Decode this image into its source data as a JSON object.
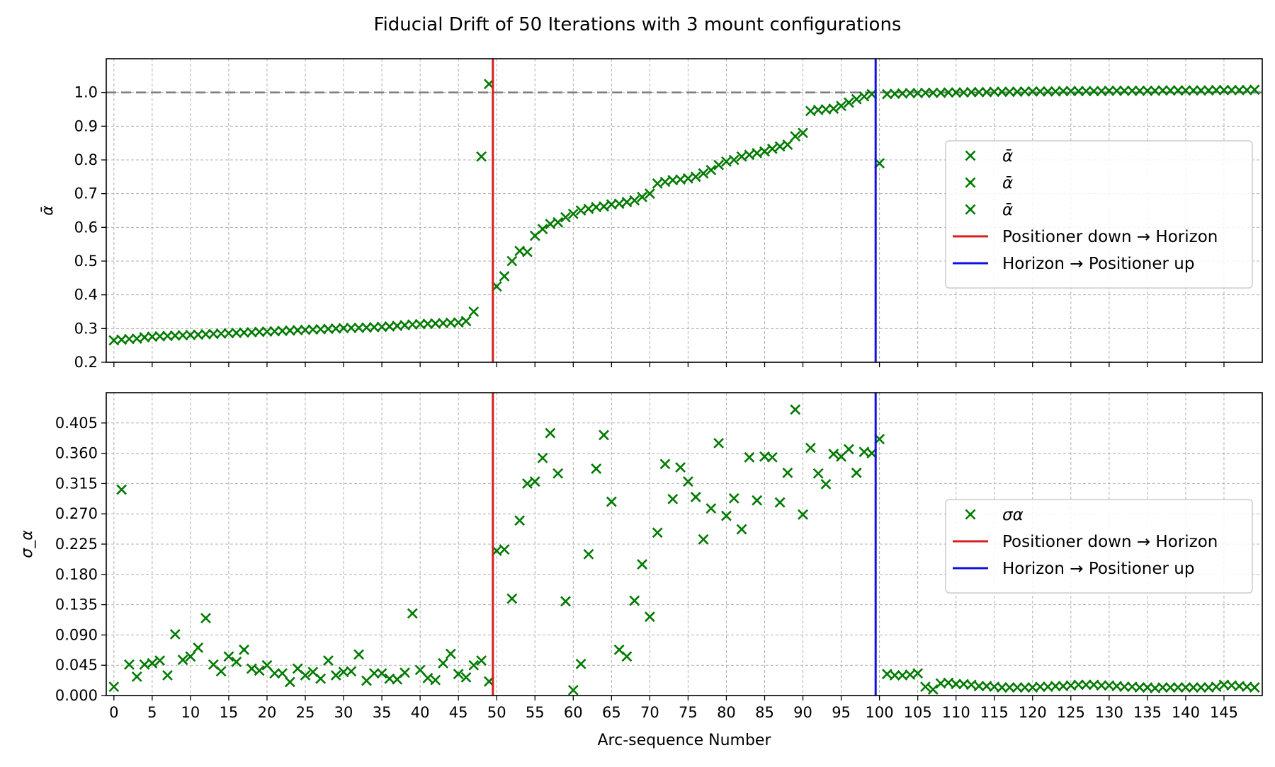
{
  "title": "Fiducial Drift of 50 Iterations with 3 mount configurations",
  "colors": {
    "marker": "#007a00",
    "red_line": "#d62020",
    "blue_line": "#1010e0",
    "reference": "#808080",
    "grid": "#b0b0b0"
  },
  "chart_data": [
    {
      "type": "scatter",
      "ylabel": "ᾱ",
      "xlim": [
        -1,
        150
      ],
      "ylim": [
        0.2,
        1.1
      ],
      "y_ticks": [
        "0.2",
        "0.3",
        "0.4",
        "0.5",
        "0.6",
        "0.7",
        "0.8",
        "0.9",
        "1.0"
      ],
      "x_ticks": [
        "0",
        "5",
        "10",
        "15",
        "20",
        "25",
        "30",
        "35",
        "40",
        "45",
        "50",
        "55",
        "60",
        "65",
        "70",
        "75",
        "80",
        "85",
        "90",
        "95",
        "100",
        "105",
        "110",
        "115",
        "120",
        "125",
        "130",
        "135",
        "140",
        "145"
      ],
      "x_tick_labels_shown": false,
      "reference_line": {
        "y": 1.0,
        "style": "dashed"
      },
      "vlines": [
        {
          "x": 49.5,
          "name": "Positioner down → Horizon",
          "color": "red"
        },
        {
          "x": 99.5,
          "name": "Horizon → Positioner up",
          "color": "blue"
        }
      ],
      "legend_position": "center-right",
      "legend": [
        "ᾱ",
        "ᾱ",
        "ᾱ",
        "Positioner down → Horizon",
        "Horizon → Positioner up"
      ],
      "series": [
        {
          "name": "ᾱ",
          "x": [
            0,
            1,
            2,
            3,
            4,
            5,
            6,
            7,
            8,
            9,
            10,
            11,
            12,
            13,
            14,
            15,
            16,
            17,
            18,
            19,
            20,
            21,
            22,
            23,
            24,
            25,
            26,
            27,
            28,
            29,
            30,
            31,
            32,
            33,
            34,
            35,
            36,
            37,
            38,
            39,
            40,
            41,
            42,
            43,
            44,
            45,
            46,
            47,
            48,
            49
          ],
          "y": [
            0.265,
            0.267,
            0.269,
            0.27,
            0.274,
            0.276,
            0.277,
            0.278,
            0.279,
            0.28,
            0.281,
            0.282,
            0.283,
            0.284,
            0.285,
            0.286,
            0.287,
            0.288,
            0.289,
            0.29,
            0.291,
            0.292,
            0.293,
            0.294,
            0.295,
            0.296,
            0.297,
            0.298,
            0.299,
            0.3,
            0.301,
            0.302,
            0.302,
            0.303,
            0.304,
            0.305,
            0.306,
            0.308,
            0.31,
            0.312,
            0.313,
            0.314,
            0.315,
            0.316,
            0.317,
            0.318,
            0.322,
            0.35,
            0.81,
            1.025
          ]
        },
        {
          "name": "ᾱ",
          "x": [
            50,
            51,
            52,
            53,
            54,
            55,
            56,
            57,
            58,
            59,
            60,
            61,
            62,
            63,
            64,
            65,
            66,
            67,
            68,
            69,
            70,
            71,
            72,
            73,
            74,
            75,
            76,
            77,
            78,
            79,
            80,
            81,
            82,
            83,
            84,
            85,
            86,
            87,
            88,
            89,
            90,
            91,
            92,
            93,
            94,
            95,
            96,
            97,
            98,
            99
          ],
          "y": [
            0.425,
            0.455,
            0.5,
            0.53,
            0.527,
            0.575,
            0.595,
            0.61,
            0.615,
            0.63,
            0.64,
            0.65,
            0.655,
            0.66,
            0.662,
            0.668,
            0.67,
            0.675,
            0.68,
            0.69,
            0.7,
            0.73,
            0.735,
            0.74,
            0.742,
            0.745,
            0.75,
            0.76,
            0.77,
            0.785,
            0.795,
            0.8,
            0.81,
            0.815,
            0.82,
            0.825,
            0.833,
            0.84,
            0.845,
            0.87,
            0.88,
            0.945,
            0.948,
            0.95,
            0.952,
            0.96,
            0.97,
            0.98,
            0.988,
            0.995
          ]
        },
        {
          "name": "ᾱ",
          "x": [
            100,
            101,
            102,
            103,
            104,
            105,
            106,
            107,
            108,
            109,
            110,
            111,
            112,
            113,
            114,
            115,
            116,
            117,
            118,
            119,
            120,
            121,
            122,
            123,
            124,
            125,
            126,
            127,
            128,
            129,
            130,
            131,
            132,
            133,
            134,
            135,
            136,
            137,
            138,
            139,
            140,
            141,
            142,
            143,
            144,
            145,
            146,
            147,
            148,
            149
          ],
          "y": [
            0.79,
            0.995,
            0.996,
            0.997,
            0.998,
            0.998,
            0.999,
            0.999,
            0.999,
            1.0,
            1.0,
            1.0,
            1.001,
            1.001,
            1.001,
            1.002,
            1.002,
            1.002,
            1.002,
            1.003,
            1.003,
            1.003,
            1.003,
            1.003,
            1.004,
            1.004,
            1.004,
            1.004,
            1.004,
            1.004,
            1.005,
            1.005,
            1.005,
            1.005,
            1.005,
            1.005,
            1.005,
            1.006,
            1.006,
            1.006,
            1.006,
            1.006,
            1.006,
            1.006,
            1.007,
            1.007,
            1.007,
            1.007,
            1.007,
            1.008
          ]
        }
      ]
    },
    {
      "type": "scatter",
      "ylabel": "σ_α",
      "xlabel": "Arc-sequence Number",
      "xlim": [
        -1,
        150
      ],
      "ylim": [
        0.0,
        0.45
      ],
      "y_ticks": [
        "0.000",
        "0.045",
        "0.090",
        "0.135",
        "0.180",
        "0.225",
        "0.270",
        "0.315",
        "0.360",
        "0.405"
      ],
      "x_ticks": [
        "0",
        "5",
        "10",
        "15",
        "20",
        "25",
        "30",
        "35",
        "40",
        "45",
        "50",
        "55",
        "60",
        "65",
        "70",
        "75",
        "80",
        "85",
        "90",
        "95",
        "100",
        "105",
        "110",
        "115",
        "120",
        "125",
        "130",
        "135",
        "140",
        "145"
      ],
      "vlines": [
        {
          "x": 49.5,
          "name": "Positioner down → Horizon",
          "color": "red"
        },
        {
          "x": 99.5,
          "name": "Horizon → Positioner up",
          "color": "blue"
        }
      ],
      "legend_position": "center-right",
      "legend": [
        "σα",
        "Positioner down → Horizon",
        "Horizon → Positioner up"
      ],
      "series": [
        {
          "name": "σα",
          "x": [
            0,
            1,
            2,
            3,
            4,
            5,
            6,
            7,
            8,
            9,
            10,
            11,
            12,
            13,
            14,
            15,
            16,
            17,
            18,
            19,
            20,
            21,
            22,
            23,
            24,
            25,
            26,
            27,
            28,
            29,
            30,
            31,
            32,
            33,
            34,
            35,
            36,
            37,
            38,
            39,
            40,
            41,
            42,
            43,
            44,
            45,
            46,
            47,
            48,
            49,
            50,
            51,
            52,
            53,
            54,
            55,
            56,
            57,
            58,
            59,
            60,
            61,
            62,
            63,
            64,
            65,
            66,
            67,
            68,
            69,
            70,
            71,
            72,
            73,
            74,
            75,
            76,
            77,
            78,
            79,
            80,
            81,
            82,
            83,
            84,
            85,
            86,
            87,
            88,
            89,
            90,
            91,
            92,
            93,
            94,
            95,
            96,
            97,
            98,
            99,
            100,
            101,
            102,
            103,
            104,
            105,
            106,
            107,
            108,
            109,
            110,
            111,
            112,
            113,
            114,
            115,
            116,
            117,
            118,
            119,
            120,
            121,
            122,
            123,
            124,
            125,
            126,
            127,
            128,
            129,
            130,
            131,
            132,
            133,
            134,
            135,
            136,
            137,
            138,
            139,
            140,
            141,
            142,
            143,
            144,
            145,
            146,
            147,
            148,
            149
          ],
          "y": [
            0.013,
            0.306,
            0.046,
            0.028,
            0.046,
            0.048,
            0.052,
            0.03,
            0.091,
            0.053,
            0.058,
            0.071,
            0.115,
            0.046,
            0.036,
            0.058,
            0.05,
            0.068,
            0.04,
            0.037,
            0.045,
            0.033,
            0.033,
            0.02,
            0.04,
            0.03,
            0.035,
            0.025,
            0.052,
            0.03,
            0.035,
            0.036,
            0.061,
            0.022,
            0.033,
            0.033,
            0.025,
            0.024,
            0.034,
            0.122,
            0.038,
            0.026,
            0.023,
            0.048,
            0.062,
            0.032,
            0.027,
            0.045,
            0.052,
            0.021,
            0.215,
            0.217,
            0.144,
            0.26,
            0.315,
            0.318,
            0.353,
            0.39,
            0.33,
            0.14,
            0.008,
            0.047,
            0.21,
            0.337,
            0.387,
            0.288,
            0.068,
            0.058,
            0.141,
            0.195,
            0.117,
            0.242,
            0.344,
            0.292,
            0.339,
            0.318,
            0.295,
            0.232,
            0.278,
            0.375,
            0.267,
            0.293,
            0.247,
            0.354,
            0.29,
            0.355,
            0.354,
            0.287,
            0.331,
            0.425,
            0.269,
            0.368,
            0.33,
            0.314,
            0.359,
            0.355,
            0.366,
            0.331,
            0.362,
            0.36,
            0.381,
            0.032,
            0.03,
            0.03,
            0.031,
            0.033,
            0.013,
            0.009,
            0.018,
            0.019,
            0.017,
            0.017,
            0.016,
            0.014,
            0.014,
            0.013,
            0.012,
            0.012,
            0.012,
            0.012,
            0.012,
            0.013,
            0.013,
            0.014,
            0.014,
            0.015,
            0.016,
            0.016,
            0.016,
            0.015,
            0.015,
            0.014,
            0.013,
            0.013,
            0.012,
            0.012,
            0.011,
            0.012,
            0.012,
            0.012,
            0.012,
            0.012,
            0.012,
            0.012,
            0.013,
            0.016,
            0.015,
            0.014,
            0.013,
            0.012
          ]
        }
      ]
    }
  ]
}
